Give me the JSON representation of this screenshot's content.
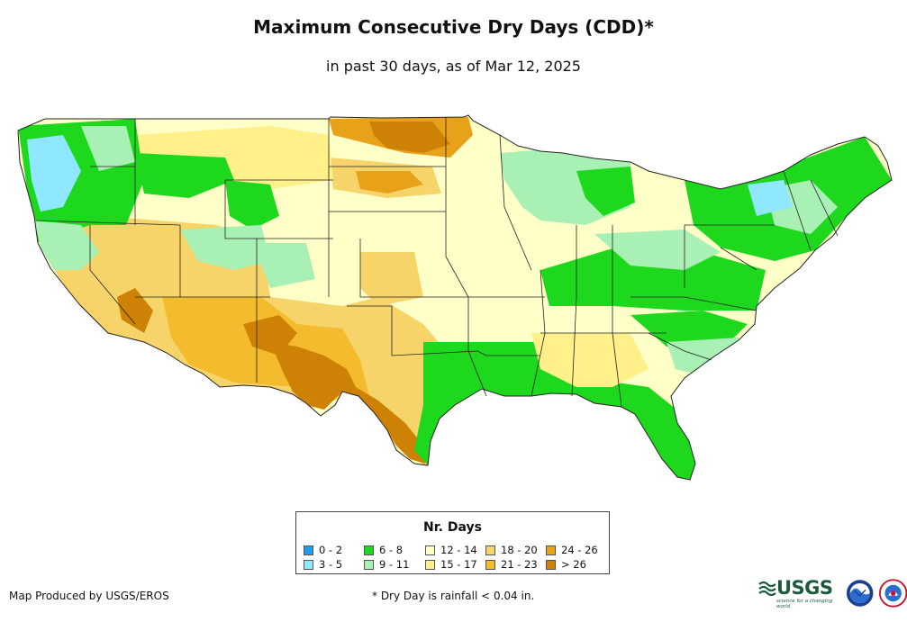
{
  "header": {
    "title": "Maximum Consecutive Dry Days (CDD)*",
    "subtitle": "in past 30 days, as of Mar 12, 2025"
  },
  "legend": {
    "title": "Nr. Days",
    "items": [
      {
        "label": "0 - 2",
        "color": "#1e9cf0"
      },
      {
        "label": "3 - 5",
        "color": "#8fe8ff"
      },
      {
        "label": "6 - 8",
        "color": "#1ed81e"
      },
      {
        "label": "9 - 11",
        "color": "#a8f0b4"
      },
      {
        "label": "12 - 14",
        "color": "#ffffc8"
      },
      {
        "label": "15 - 17",
        "color": "#fff08a"
      },
      {
        "label": "18 - 20",
        "color": "#f7d46a"
      },
      {
        "label": "21 - 23",
        "color": "#f5bb2e"
      },
      {
        "label": "24 - 26",
        "color": "#e8a21a"
      },
      {
        "label": "> 26",
        "color": "#cd8205"
      }
    ]
  },
  "footer": {
    "producer": "Map Produced by USGS/EROS",
    "note": "* Dry Day is rainfall < 0.04 in."
  },
  "logos": {
    "usgs": "USGS",
    "usgs_tagline": "science for a changing world",
    "noaa": "NOAA",
    "nws": "NATIONAL WEATHER SERVICE"
  }
}
